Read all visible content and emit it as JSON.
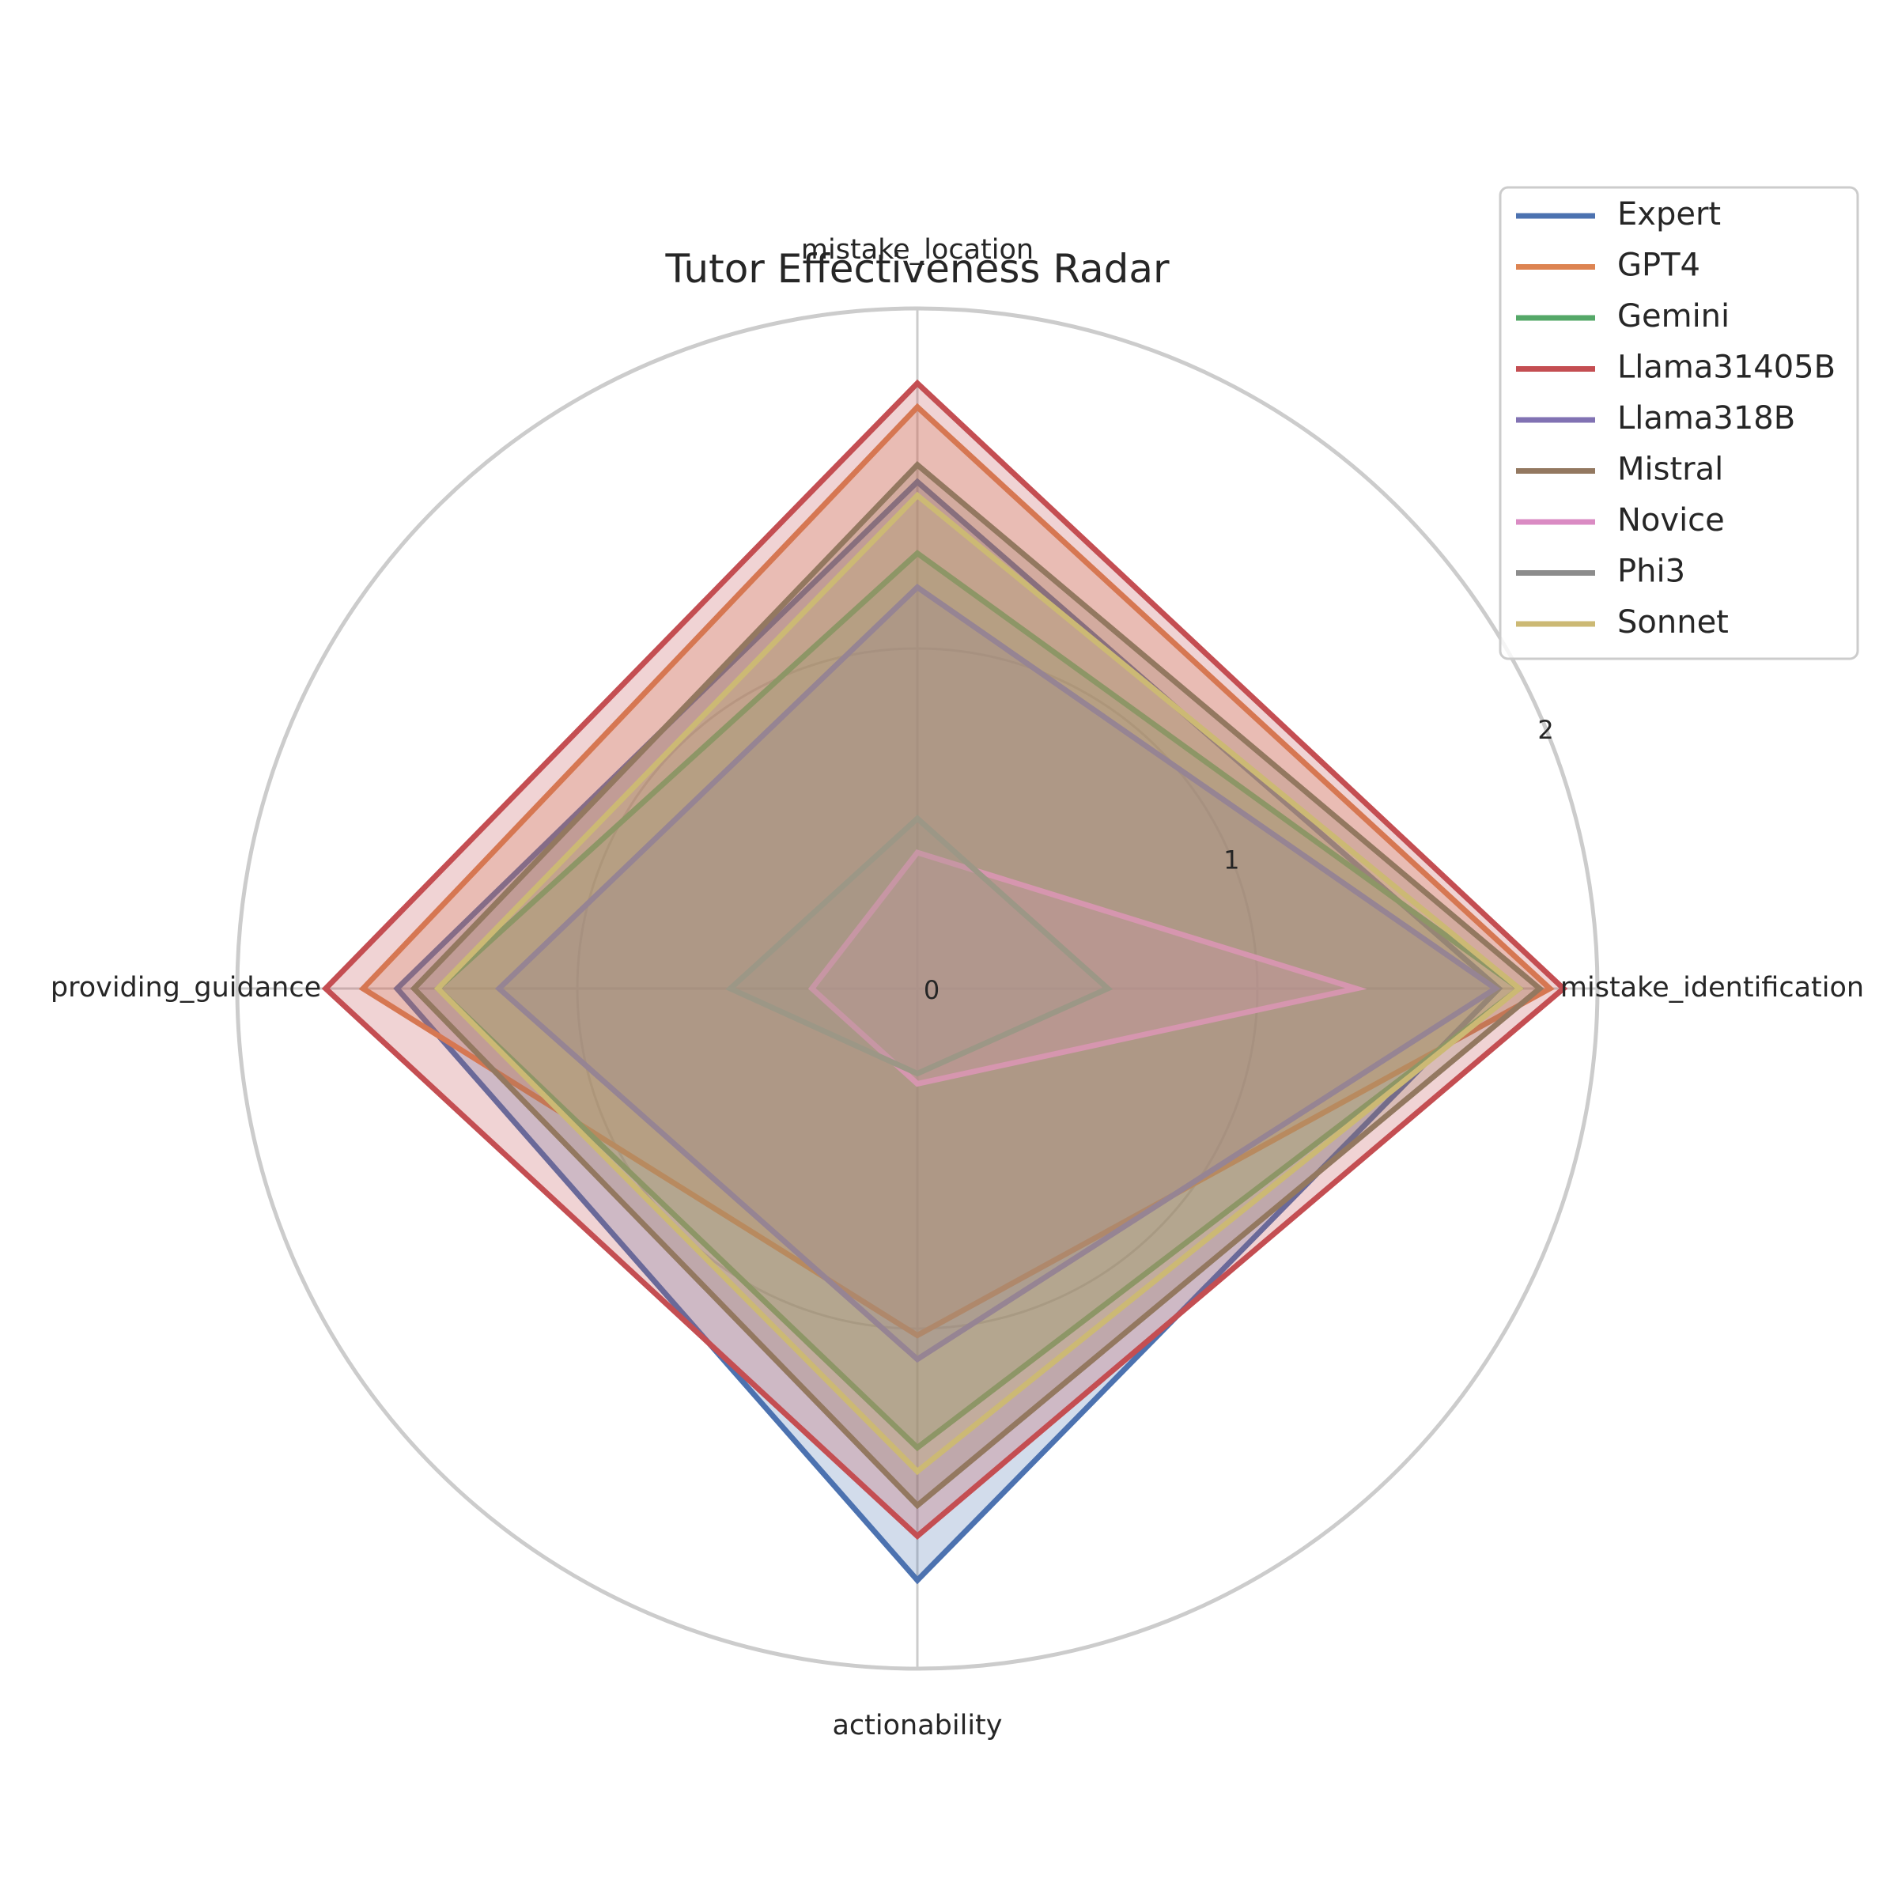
{
  "chart_data": {
    "type": "radar",
    "title": "Tutor Effectiveness Radar",
    "axes": [
      "mistake_identification",
      "mistake_location",
      "providing_guidance",
      "actionability"
    ],
    "radial_ticks": [
      0,
      1,
      2
    ],
    "rlim": [
      0,
      2
    ],
    "grid": true,
    "legend_position": "top-right",
    "series": [
      {
        "name": "Expert",
        "color": "#4c72b0",
        "values": [
          1.71,
          1.49,
          1.53,
          1.74
        ]
      },
      {
        "name": "GPT4",
        "color": "#dd8452",
        "values": [
          1.86,
          1.71,
          1.63,
          1.02
        ]
      },
      {
        "name": "Gemini",
        "color": "#55a868",
        "values": [
          1.77,
          1.28,
          1.41,
          1.35
        ]
      },
      {
        "name": "Llama31405B",
        "color": "#c44e52",
        "values": [
          1.9,
          1.78,
          1.74,
          1.61
        ]
      },
      {
        "name": "Llama318B",
        "color": "#8172b3",
        "values": [
          1.7,
          1.18,
          1.23,
          1.09
        ]
      },
      {
        "name": "Mistral",
        "color": "#937860",
        "values": [
          1.83,
          1.54,
          1.48,
          1.52
        ]
      },
      {
        "name": "Novice",
        "color": "#da8bc3",
        "values": [
          1.29,
          0.4,
          0.31,
          0.28
        ]
      },
      {
        "name": "Phi3",
        "color": "#8c8c8c",
        "values": [
          0.56,
          0.5,
          0.55,
          0.25
        ]
      },
      {
        "name": "Sonnet",
        "color": "#ccb974",
        "values": [
          1.77,
          1.45,
          1.41,
          1.42
        ]
      }
    ]
  }
}
